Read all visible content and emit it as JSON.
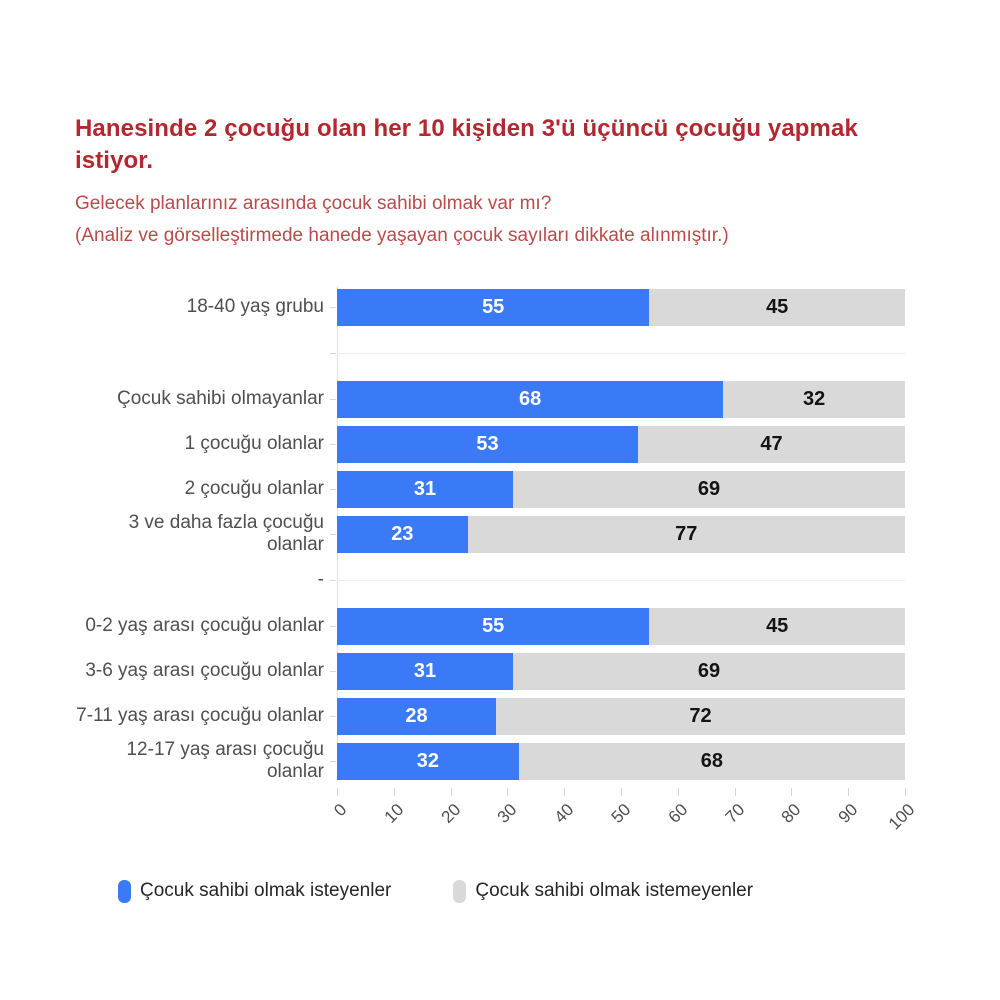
{
  "header": {
    "title": "Hanesinde 2 çocuğu olan her 10 kişiden 3'ü üçüncü çocuğu yapmak istiyor.",
    "subtitle": "Gelecek planlarınız arasında çocuk sahibi olmak var mı?",
    "note": "(Analiz ve görselleştirmede hanede yaşayan çocuk sayıları dikkate alınmıştır.)"
  },
  "colors": {
    "title_red": "#b22730",
    "subtitle_red": "#b94b49",
    "bar_blue": "#3b7af7",
    "bar_gray": "#d9d9d9"
  },
  "chart_data": {
    "type": "bar",
    "orientation": "horizontal",
    "stacked": true,
    "grid": false,
    "xlim": [
      0,
      100
    ],
    "x_ticks": [
      0,
      10,
      20,
      30,
      40,
      50,
      60,
      70,
      80,
      90,
      100
    ],
    "legend_position": "bottom",
    "categories": [
      "18-40 yaş grubu",
      "",
      "Çocuk sahibi olmayanlar",
      "1 çocuğu olanlar",
      "2 çocuğu olanlar",
      "3 ve daha fazla çocuğu olanlar",
      "-",
      "0-2 yaş arası çocuğu olanlar",
      "3-6 yaş arası çocuğu olanlar",
      "7-11 yaş arası çocuğu olanlar",
      "12-17 yaş arası çocuğu olanlar"
    ],
    "series": [
      {
        "name": "Çocuk sahibi olmak isteyenler",
        "color": "#3b7af7",
        "values": [
          55,
          null,
          68,
          53,
          31,
          23,
          null,
          55,
          31,
          28,
          32
        ]
      },
      {
        "name": "Çocuk sahibi olmak istemeyenler",
        "color": "#d9d9d9",
        "values": [
          45,
          null,
          32,
          47,
          69,
          77,
          null,
          45,
          69,
          72,
          68
        ]
      }
    ]
  },
  "legend": {
    "items": [
      {
        "label": "Çocuk sahibi olmak isteyenler",
        "color": "#3b7af7"
      },
      {
        "label": "Çocuk sahibi olmak istemeyenler",
        "color": "#d9d9d9"
      }
    ]
  }
}
